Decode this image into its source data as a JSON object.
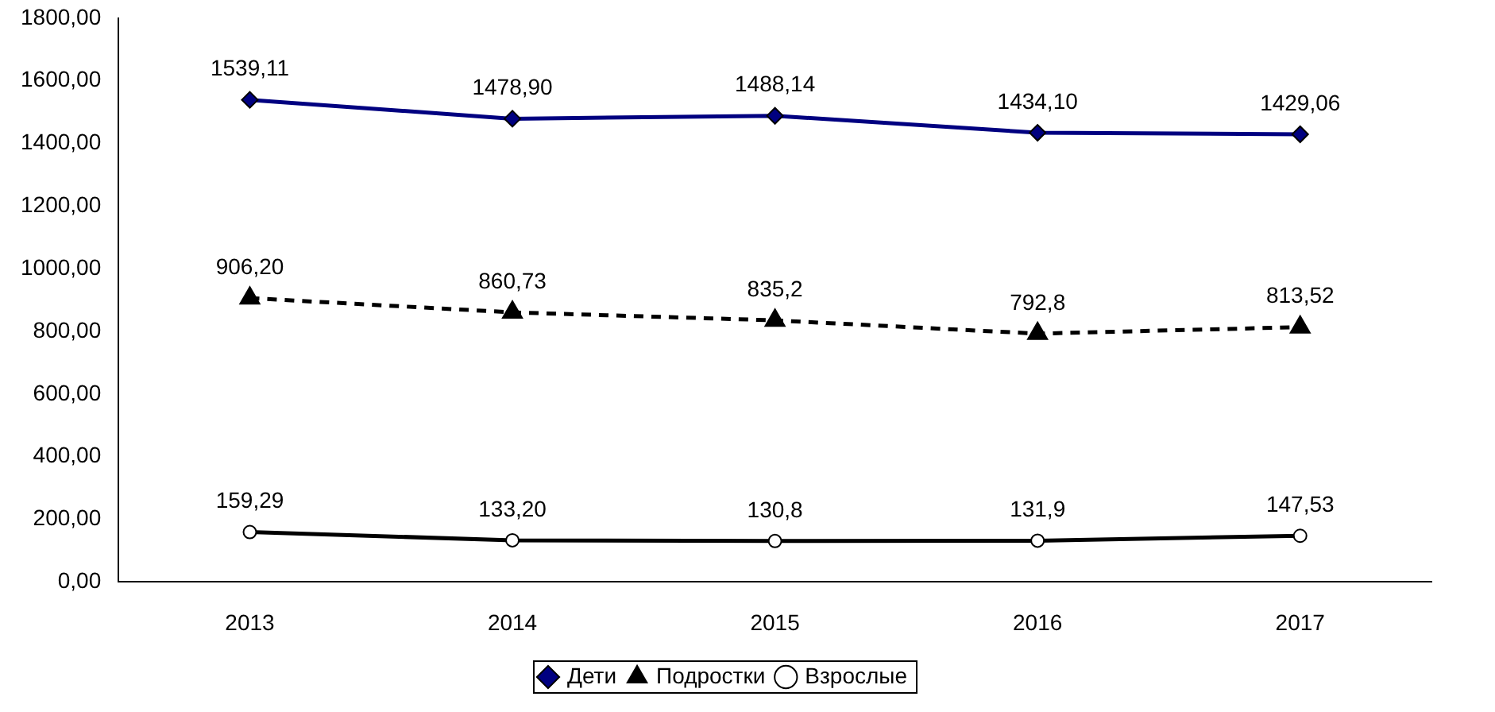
{
  "chart_data": {
    "type": "line",
    "categories": [
      "2013",
      "2014",
      "2015",
      "2016",
      "2017"
    ],
    "series": [
      {
        "name": "Дети",
        "color": "#000080",
        "marker": "diamond",
        "line_style": "solid",
        "values": [
          1539.11,
          1478.9,
          1488.14,
          1434.1,
          1429.06
        ],
        "value_labels": [
          "1539,11",
          "1478,90",
          "1488,14",
          "1434,10",
          "1429,06"
        ]
      },
      {
        "name": "Подростки",
        "color": "#000000",
        "marker": "triangle",
        "line_style": "dashed",
        "values": [
          906.2,
          860.73,
          835.2,
          792.8,
          813.52
        ],
        "value_labels": [
          "906,20",
          "860,73",
          "835,2",
          "792,8",
          "813,52"
        ]
      },
      {
        "name": "Взрослые",
        "color": "#000000",
        "marker": "circle",
        "line_style": "solid",
        "values": [
          159.29,
          133.2,
          130.8,
          131.9,
          147.53
        ],
        "value_labels": [
          "159,29",
          "133,20",
          "130,8",
          "131,9",
          "147,53"
        ]
      }
    ],
    "ylim": [
      0,
      1800
    ],
    "yticks": [
      {
        "value": 0,
        "label": "0,00"
      },
      {
        "value": 200,
        "label": "200,00"
      },
      {
        "value": 400,
        "label": "400,00"
      },
      {
        "value": 600,
        "label": "600,00"
      },
      {
        "value": 800,
        "label": "800,00"
      },
      {
        "value": 1000,
        "label": "1000,00"
      },
      {
        "value": 1200,
        "label": "1200,00"
      },
      {
        "value": 1400,
        "label": "1400,00"
      },
      {
        "value": 1600,
        "label": "1600,00"
      },
      {
        "value": 1800,
        "label": "1800,00"
      }
    ],
    "grid": false,
    "legend": "bottom"
  }
}
